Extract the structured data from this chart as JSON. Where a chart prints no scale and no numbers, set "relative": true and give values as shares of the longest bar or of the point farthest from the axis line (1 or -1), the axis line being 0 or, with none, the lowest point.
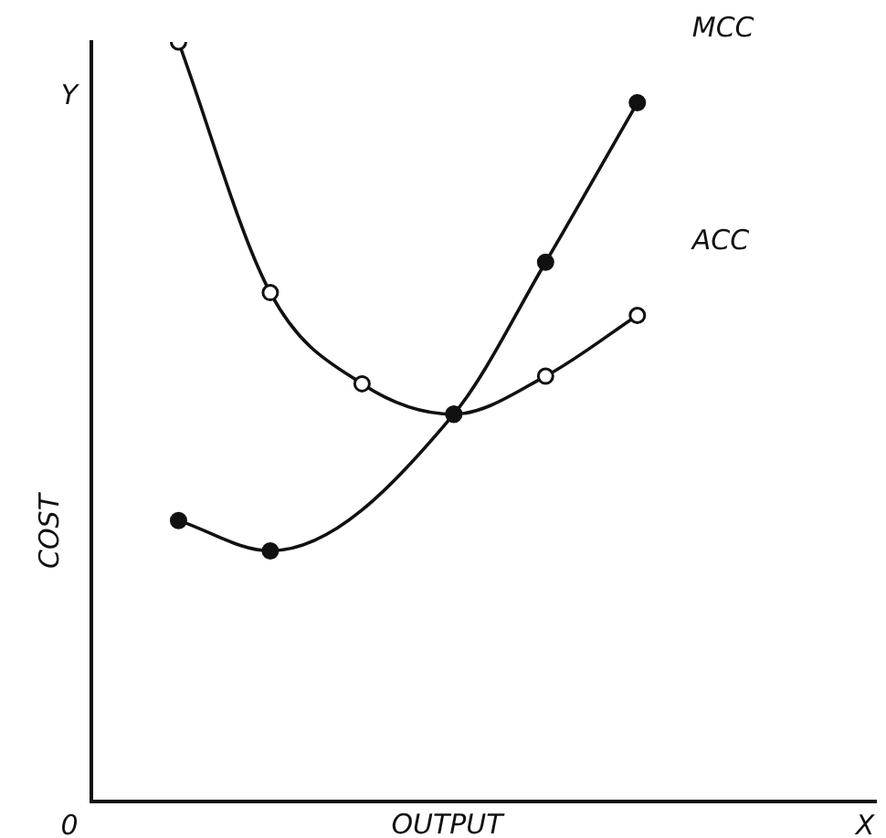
{
  "chart_data": {
    "type": "line",
    "relative": true,
    "xlabel": "OUTPUT",
    "ylabel": "COST",
    "annotations": [
      "Y",
      "0",
      "X"
    ],
    "categories": [
      null,
      null,
      null,
      null,
      null,
      null
    ],
    "series": [
      {
        "name": "MCC",
        "color": "#111111",
        "marker": "circle",
        "values": [
          0.37,
          0.33,
          null,
          0.51,
          0.71,
          0.92
        ]
      },
      {
        "name": "ACC",
        "color": "#111111",
        "marker": "circle",
        "values": [
          1,
          0.67,
          0.55,
          0.51,
          0.56,
          0.64
        ]
      }
    ],
    "legend": false,
    "grid": false
  }
}
